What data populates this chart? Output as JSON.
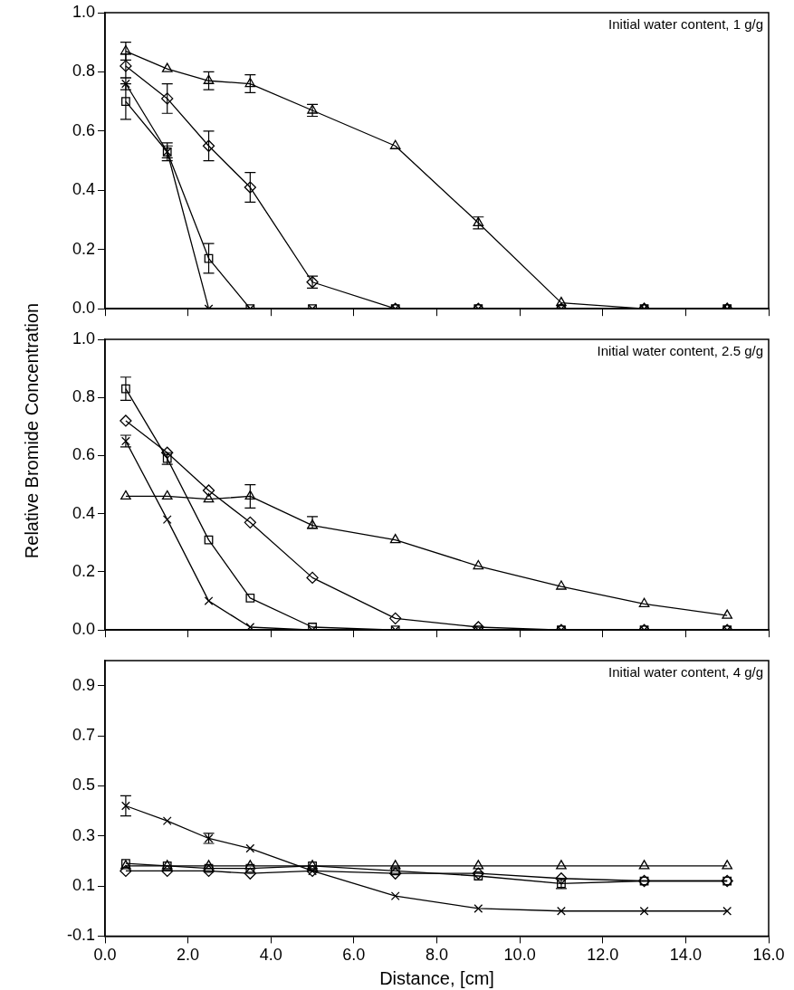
{
  "chart_data": [
    {
      "type": "line",
      "annotations": [
        "Initial water content, 1 g/g"
      ],
      "x": [
        0.5,
        1.5,
        2.5,
        3.5,
        5,
        7,
        9,
        11,
        13,
        15
      ],
      "xlim": [
        0,
        16
      ],
      "xticks": [
        0,
        2,
        4,
        6,
        8,
        10,
        12,
        14,
        16
      ],
      "ylim": [
        0,
        1
      ],
      "yticks": [
        {
          "value": 0,
          "label": "0.0"
        },
        {
          "value": 0.2,
          "label": "0.2"
        },
        {
          "value": 0.4,
          "label": "0.4"
        },
        {
          "value": 0.6,
          "label": "0.6"
        },
        {
          "value": 0.8,
          "label": "0.8"
        },
        {
          "value": 1,
          "label": "1.0"
        }
      ],
      "tick_labels": "y",
      "grid": false,
      "legend": false,
      "series": [
        {
          "color": "#000000",
          "marker": "triangle",
          "values": [
            0.87,
            0.81,
            0.77,
            0.76,
            0.67,
            0.55,
            0.29,
            0.02,
            0,
            0
          ],
          "errors": [
            0.03,
            null,
            0.03,
            0.03,
            0.02,
            null,
            0.02,
            null,
            null,
            null
          ]
        },
        {
          "color": "#000000",
          "marker": "diamond",
          "values": [
            0.82,
            0.71,
            0.55,
            0.41,
            0.09,
            0,
            0,
            0,
            0,
            0
          ],
          "errors": [
            0.04,
            0.05,
            0.05,
            0.05,
            0.02,
            null,
            null,
            null,
            null,
            null
          ]
        },
        {
          "color": "#000000",
          "marker": "square",
          "values": [
            0.7,
            0.53,
            0.17,
            0,
            0,
            0,
            0,
            0,
            0,
            0
          ],
          "errors": [
            0.06,
            0.03,
            0.05,
            null,
            null,
            null,
            null,
            null,
            null,
            null
          ]
        },
        {
          "color": "#000000",
          "marker": "cross",
          "values": [
            0.76,
            0.53,
            0,
            0,
            0,
            0,
            0,
            0,
            0,
            0
          ],
          "errors": [
            0.02,
            0.02,
            null,
            null,
            null,
            null,
            null,
            null,
            null,
            null
          ]
        }
      ]
    },
    {
      "type": "line",
      "ylabel": "Relative Bromide Concentration",
      "annotations": [
        "Initial water content, 2.5 g/g"
      ],
      "x": [
        0.5,
        1.5,
        2.5,
        3.5,
        5,
        7,
        9,
        11,
        13,
        15
      ],
      "xlim": [
        0,
        16
      ],
      "xticks": [
        0,
        2,
        4,
        6,
        8,
        10,
        12,
        14,
        16
      ],
      "ylim": [
        0,
        1
      ],
      "yticks": [
        {
          "value": 0,
          "label": "0.0"
        },
        {
          "value": 0.2,
          "label": "0.2"
        },
        {
          "value": 0.4,
          "label": "0.4"
        },
        {
          "value": 0.6,
          "label": "0.6"
        },
        {
          "value": 0.8,
          "label": "0.8"
        },
        {
          "value": 1,
          "label": "1.0"
        }
      ],
      "tick_labels": "y",
      "grid": false,
      "legend": false,
      "series": [
        {
          "color": "#000000",
          "marker": "triangle",
          "values": [
            0.46,
            0.46,
            0.45,
            0.46,
            0.36,
            0.31,
            0.22,
            0.15,
            0.09,
            0.05
          ],
          "errors": [
            null,
            null,
            null,
            0.04,
            [
              0.35,
              0.39
            ],
            null,
            null,
            null,
            null,
            null
          ]
        },
        {
          "color": "#000000",
          "marker": "diamond",
          "values": [
            0.72,
            0.61,
            0.48,
            0.37,
            0.18,
            0.04,
            0.01,
            0,
            0,
            0
          ],
          "errors": [
            null,
            null,
            null,
            null,
            null,
            null,
            null,
            null,
            null,
            null
          ]
        },
        {
          "color": "#000000",
          "marker": "square",
          "values": [
            0.83,
            0.59,
            0.31,
            0.11,
            0.01,
            0,
            0,
            0,
            0,
            0
          ],
          "errors": [
            0.04,
            0.02,
            null,
            null,
            null,
            null,
            null,
            null,
            null,
            null
          ]
        },
        {
          "color": "#000000",
          "marker": "cross",
          "values": [
            0.65,
            0.38,
            0.1,
            0.01,
            0,
            0,
            0,
            0,
            0,
            0
          ],
          "errors": [
            0.02,
            null,
            null,
            null,
            null,
            null,
            null,
            null,
            null,
            null
          ]
        }
      ]
    },
    {
      "type": "line",
      "xlabel": "Distance, [cm]",
      "annotations": [
        "Initial water content, 4 g/g"
      ],
      "x": [
        0.5,
        1.5,
        2.5,
        3.5,
        5,
        7,
        9,
        11,
        13,
        15
      ],
      "xlim": [
        0,
        16
      ],
      "xticks": [
        {
          "value": 0,
          "label": "0.0"
        },
        {
          "value": 2,
          "label": "2.0"
        },
        {
          "value": 4,
          "label": "4.0"
        },
        {
          "value": 6,
          "label": "6.0"
        },
        {
          "value": 8,
          "label": "8.0"
        },
        {
          "value": 10,
          "label": "10.0"
        },
        {
          "value": 12,
          "label": "12.0"
        },
        {
          "value": 14,
          "label": "14.0"
        },
        {
          "value": 16,
          "label": "16.0"
        }
      ],
      "ylim": [
        -0.1,
        1
      ],
      "yticks": [
        -0.1,
        0.1,
        0.3,
        0.5,
        0.7,
        0.9
      ],
      "grid": false,
      "legend": false,
      "series": [
        {
          "color": "#000000",
          "marker": "triangle",
          "values": [
            0.18,
            0.18,
            0.18,
            0.18,
            0.18,
            0.18,
            0.18,
            0.18,
            0.18,
            0.18
          ],
          "errors": [
            null,
            null,
            null,
            null,
            null,
            null,
            null,
            null,
            null,
            null
          ]
        },
        {
          "color": "#000000",
          "marker": "diamond",
          "values": [
            0.16,
            0.16,
            0.16,
            0.15,
            0.16,
            0.15,
            0.15,
            0.13,
            0.12,
            0.12
          ],
          "errors": [
            null,
            null,
            null,
            null,
            null,
            null,
            null,
            null,
            null,
            null
          ]
        },
        {
          "color": "#000000",
          "marker": "square",
          "values": [
            0.19,
            0.18,
            0.17,
            0.17,
            0.18,
            0.16,
            0.14,
            0.11,
            0.12,
            0.12
          ],
          "errors": [
            null,
            null,
            null,
            null,
            null,
            null,
            null,
            0.02,
            null,
            null
          ]
        },
        {
          "color": "#000000",
          "marker": "cross",
          "values": [
            0.42,
            0.36,
            0.29,
            0.25,
            0.16,
            0.06,
            0.01,
            0,
            0,
            0
          ],
          "errors": [
            0.04,
            null,
            0.02,
            null,
            null,
            null,
            null,
            null,
            null,
            null
          ]
        }
      ]
    }
  ]
}
